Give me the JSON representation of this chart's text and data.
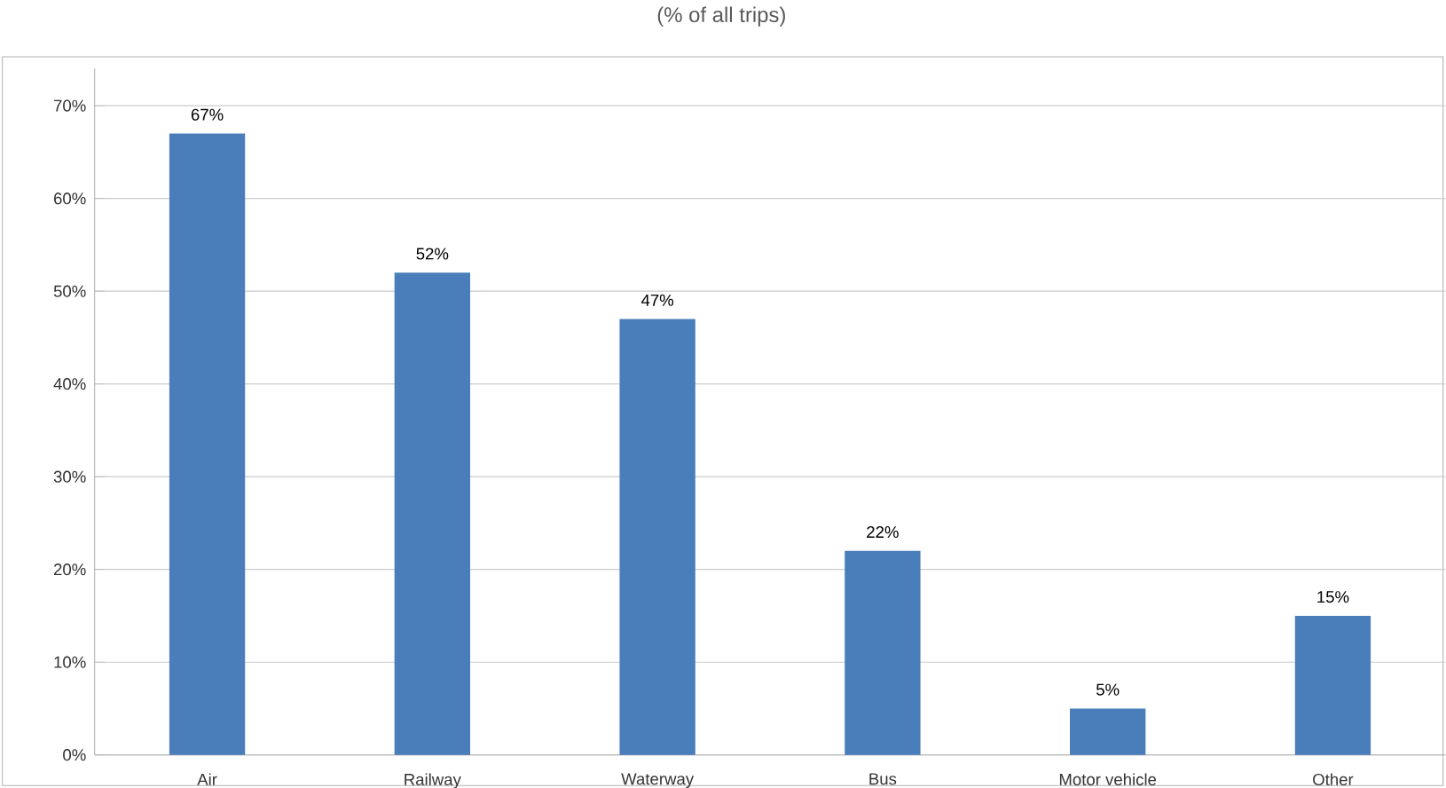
{
  "chart_data": {
    "type": "bar",
    "title": "(% of all trips)",
    "categories": [
      "Air",
      "Railway",
      "Waterway",
      "Bus",
      "Motor vehicle",
      "Other"
    ],
    "values": [
      67,
      52,
      47,
      22,
      5,
      15
    ],
    "value_labels": [
      "67%",
      "52%",
      "47%",
      "22%",
      "5%",
      "15%"
    ],
    "color": "#4a7ebb",
    "ylim": [
      0,
      74
    ],
    "yticks": [
      {
        "value": 0,
        "label": "0%"
      },
      {
        "value": 10,
        "label": "10%"
      },
      {
        "value": 20,
        "label": "20%"
      },
      {
        "value": 30,
        "label": "30%"
      },
      {
        "value": 40,
        "label": "40%"
      },
      {
        "value": 50,
        "label": "50%"
      },
      {
        "value": 60,
        "label": "60%"
      },
      {
        "value": 70,
        "label": "70%"
      }
    ],
    "grid": "y"
  }
}
